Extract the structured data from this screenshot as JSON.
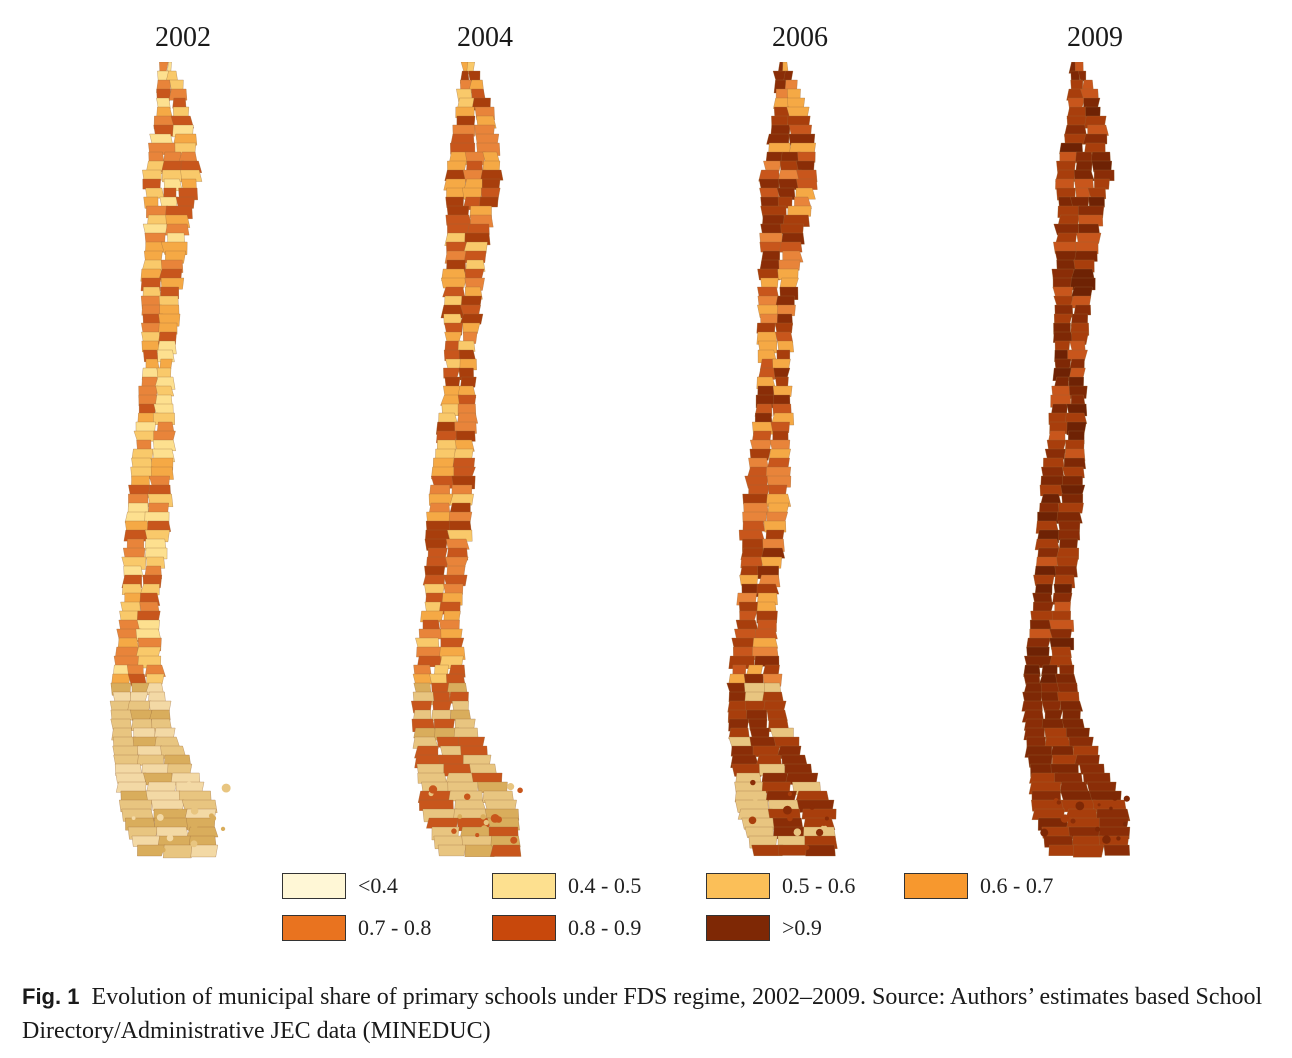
{
  "maps": [
    {
      "year": "2002",
      "dominant": [
        "#e8843a",
        "#c8561c",
        "#f5a945",
        "#f9c96a",
        "#fde08f"
      ],
      "south": [
        "#e8c580",
        "#d9ad5c",
        "#f3d9a5"
      ]
    },
    {
      "year": "2004",
      "dominant": [
        "#c8561c",
        "#e8843a",
        "#a83e0c",
        "#f5a945",
        "#f9c96a"
      ],
      "south": [
        "#c8561c",
        "#d9ad5c",
        "#e8c580"
      ]
    },
    {
      "year": "2006",
      "dominant": [
        "#a83e0c",
        "#8a2d07",
        "#c8561c",
        "#e8843a",
        "#f5a945"
      ],
      "south": [
        "#8a2d07",
        "#a83e0c",
        "#e8c580"
      ]
    },
    {
      "year": "2009",
      "dominant": [
        "#7e2805",
        "#8a2d07",
        "#a83e0c",
        "#6e2204",
        "#c8561c"
      ],
      "south": [
        "#7e2805",
        "#8a2d07",
        "#a83e0c"
      ]
    }
  ],
  "legend": [
    {
      "label": "<0.4",
      "color": "#fff7d6"
    },
    {
      "label": "0.4 - 0.5",
      "color": "#fde08f"
    },
    {
      "label": "0.5 - 0.6",
      "color": "#fbbf58"
    },
    {
      "label": "0.6 - 0.7",
      "color": "#f7982e"
    },
    {
      "label": "0.7 - 0.8",
      "color": "#e9731f"
    },
    {
      "label": "0.8 - 0.9",
      "color": "#c8480c"
    },
    {
      "label": ">0.9",
      "color": "#7e2805"
    }
  ],
  "caption": {
    "fig_label": "Fig. 1",
    "text": "Evolution of municipal share of primary schools under FDS regime, 2002–2009. Source: Authors’ estimates based School Directory/Administrative JEC data (MINEDUC)"
  }
}
